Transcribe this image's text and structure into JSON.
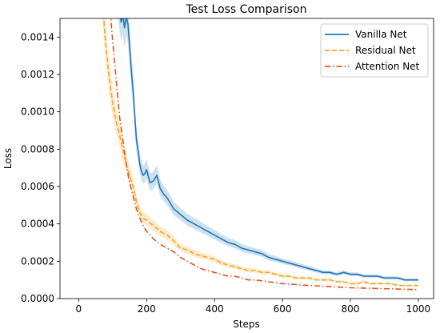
{
  "chart_data": {
    "type": "line",
    "title": "Test Loss Comparison",
    "xlabel": "Steps",
    "ylabel": "Loss",
    "xlim": [
      -55,
      1045
    ],
    "ylim": [
      0,
      0.0015
    ],
    "xticks": [
      0,
      200,
      400,
      600,
      800,
      1000
    ],
    "xtick_labels": [
      "0",
      "200",
      "400",
      "600",
      "800",
      "1000"
    ],
    "yticks": [
      0,
      0.0002,
      0.0004,
      0.0006,
      0.0008,
      0.001,
      0.0012,
      0.0014
    ],
    "ytick_labels": [
      "0.0000",
      "0.0002",
      "0.0004",
      "0.0006",
      "0.0008",
      "0.0010",
      "0.0012",
      "0.0014"
    ],
    "grid": false,
    "legend_position": "top-right",
    "series": [
      {
        "name": "Vanilla Net",
        "color": "#1f77b4",
        "style": "solid",
        "has_band": true,
        "x": [
          110,
          118,
          125,
          130,
          135,
          140,
          145,
          150,
          155,
          160,
          165,
          170,
          175,
          180,
          185,
          190,
          195,
          200,
          210,
          220,
          230,
          240,
          250,
          260,
          280,
          300,
          320,
          340,
          360,
          380,
          400,
          420,
          440,
          460,
          480,
          500,
          520,
          540,
          560,
          580,
          600,
          620,
          640,
          660,
          680,
          700,
          720,
          740,
          760,
          780,
          800,
          820,
          840,
          860,
          880,
          900,
          920,
          940,
          960,
          980,
          1000
        ],
        "y": [
          0.0017,
          0.00158,
          0.00148,
          0.00152,
          0.00145,
          0.00151,
          0.00147,
          0.00135,
          0.00122,
          0.00112,
          0.00098,
          0.00085,
          0.00079,
          0.00072,
          0.00068,
          0.00066,
          0.00067,
          0.00069,
          0.00062,
          0.00063,
          0.00066,
          0.00059,
          0.00056,
          0.00054,
          0.00048,
          0.00045,
          0.00042,
          0.0004,
          0.00038,
          0.00036,
          0.00034,
          0.00032,
          0.0003,
          0.00029,
          0.00027,
          0.00026,
          0.00025,
          0.00024,
          0.00022,
          0.00021,
          0.0002,
          0.00019,
          0.00018,
          0.00017,
          0.00016,
          0.00015,
          0.00014,
          0.00014,
          0.00013,
          0.00014,
          0.00013,
          0.00013,
          0.00012,
          0.00012,
          0.00012,
          0.00011,
          0.00011,
          0.00011,
          0.0001,
          0.0001,
          0.0001
        ]
      },
      {
        "name": "Residual Net",
        "color": "#f5a623",
        "style": "dashed",
        "has_band": true,
        "x": [
          70,
          80,
          90,
          100,
          110,
          120,
          130,
          140,
          150,
          160,
          170,
          180,
          190,
          200,
          220,
          240,
          260,
          280,
          300,
          320,
          340,
          360,
          380,
          400,
          420,
          440,
          460,
          480,
          500,
          520,
          540,
          560,
          580,
          600,
          620,
          640,
          660,
          680,
          700,
          720,
          740,
          760,
          780,
          800,
          820,
          840,
          860,
          880,
          900,
          920,
          940,
          960,
          980,
          1000
        ],
        "y": [
          0.0016,
          0.00135,
          0.00118,
          0.00105,
          0.00095,
          0.00088,
          0.0008,
          0.00072,
          0.00066,
          0.0006,
          0.00052,
          0.00046,
          0.00043,
          0.00042,
          0.00039,
          0.00036,
          0.00034,
          0.00031,
          0.00027,
          0.00026,
          0.00024,
          0.00023,
          0.00022,
          0.00021,
          0.00019,
          0.00018,
          0.00017,
          0.00016,
          0.00015,
          0.00015,
          0.00014,
          0.00014,
          0.00013,
          0.00012,
          0.00012,
          0.00011,
          0.00011,
          0.00011,
          0.0001,
          0.0001,
          0.0001,
          9e-05,
          9e-05,
          8e-05,
          8e-05,
          9e-05,
          8e-05,
          8e-05,
          8e-05,
          8e-05,
          7e-05,
          7e-05,
          7e-05,
          7e-05
        ]
      },
      {
        "name": "Attention Net",
        "color": "#e5531a",
        "style": "dashdot",
        "has_band": false,
        "x": [
          90,
          100,
          110,
          120,
          130,
          140,
          150,
          160,
          170,
          180,
          190,
          200,
          220,
          240,
          260,
          280,
          300,
          320,
          340,
          360,
          380,
          400,
          420,
          440,
          460,
          480,
          500,
          520,
          540,
          560,
          580,
          600,
          620,
          640,
          660,
          680,
          700,
          720,
          740,
          760,
          780,
          800,
          820,
          840,
          860,
          880,
          900,
          920,
          940,
          960,
          980,
          1000
        ],
        "y": [
          0.0016,
          0.00138,
          0.00118,
          0.00098,
          0.00085,
          0.00072,
          0.00062,
          0.00055,
          0.00048,
          0.00043,
          0.00039,
          0.00036,
          0.00032,
          0.00029,
          0.00027,
          0.00025,
          0.00022,
          0.0002,
          0.00018,
          0.00016,
          0.00015,
          0.00014,
          0.00013,
          0.00012,
          0.00012,
          0.00011,
          0.0001,
          0.0001,
          9.5e-05,
          9e-05,
          8.5e-05,
          8e-05,
          7.8e-05,
          7.5e-05,
          7.2e-05,
          7e-05,
          6.8e-05,
          6.6e-05,
          6.4e-05,
          6.2e-05,
          6e-05,
          5.8e-05,
          5.7e-05,
          5.6e-05,
          5.5e-05,
          5.4e-05,
          5.3e-05,
          5.2e-05,
          5.1e-05,
          5e-05,
          4.9e-05,
          4.8e-05
        ]
      }
    ]
  }
}
